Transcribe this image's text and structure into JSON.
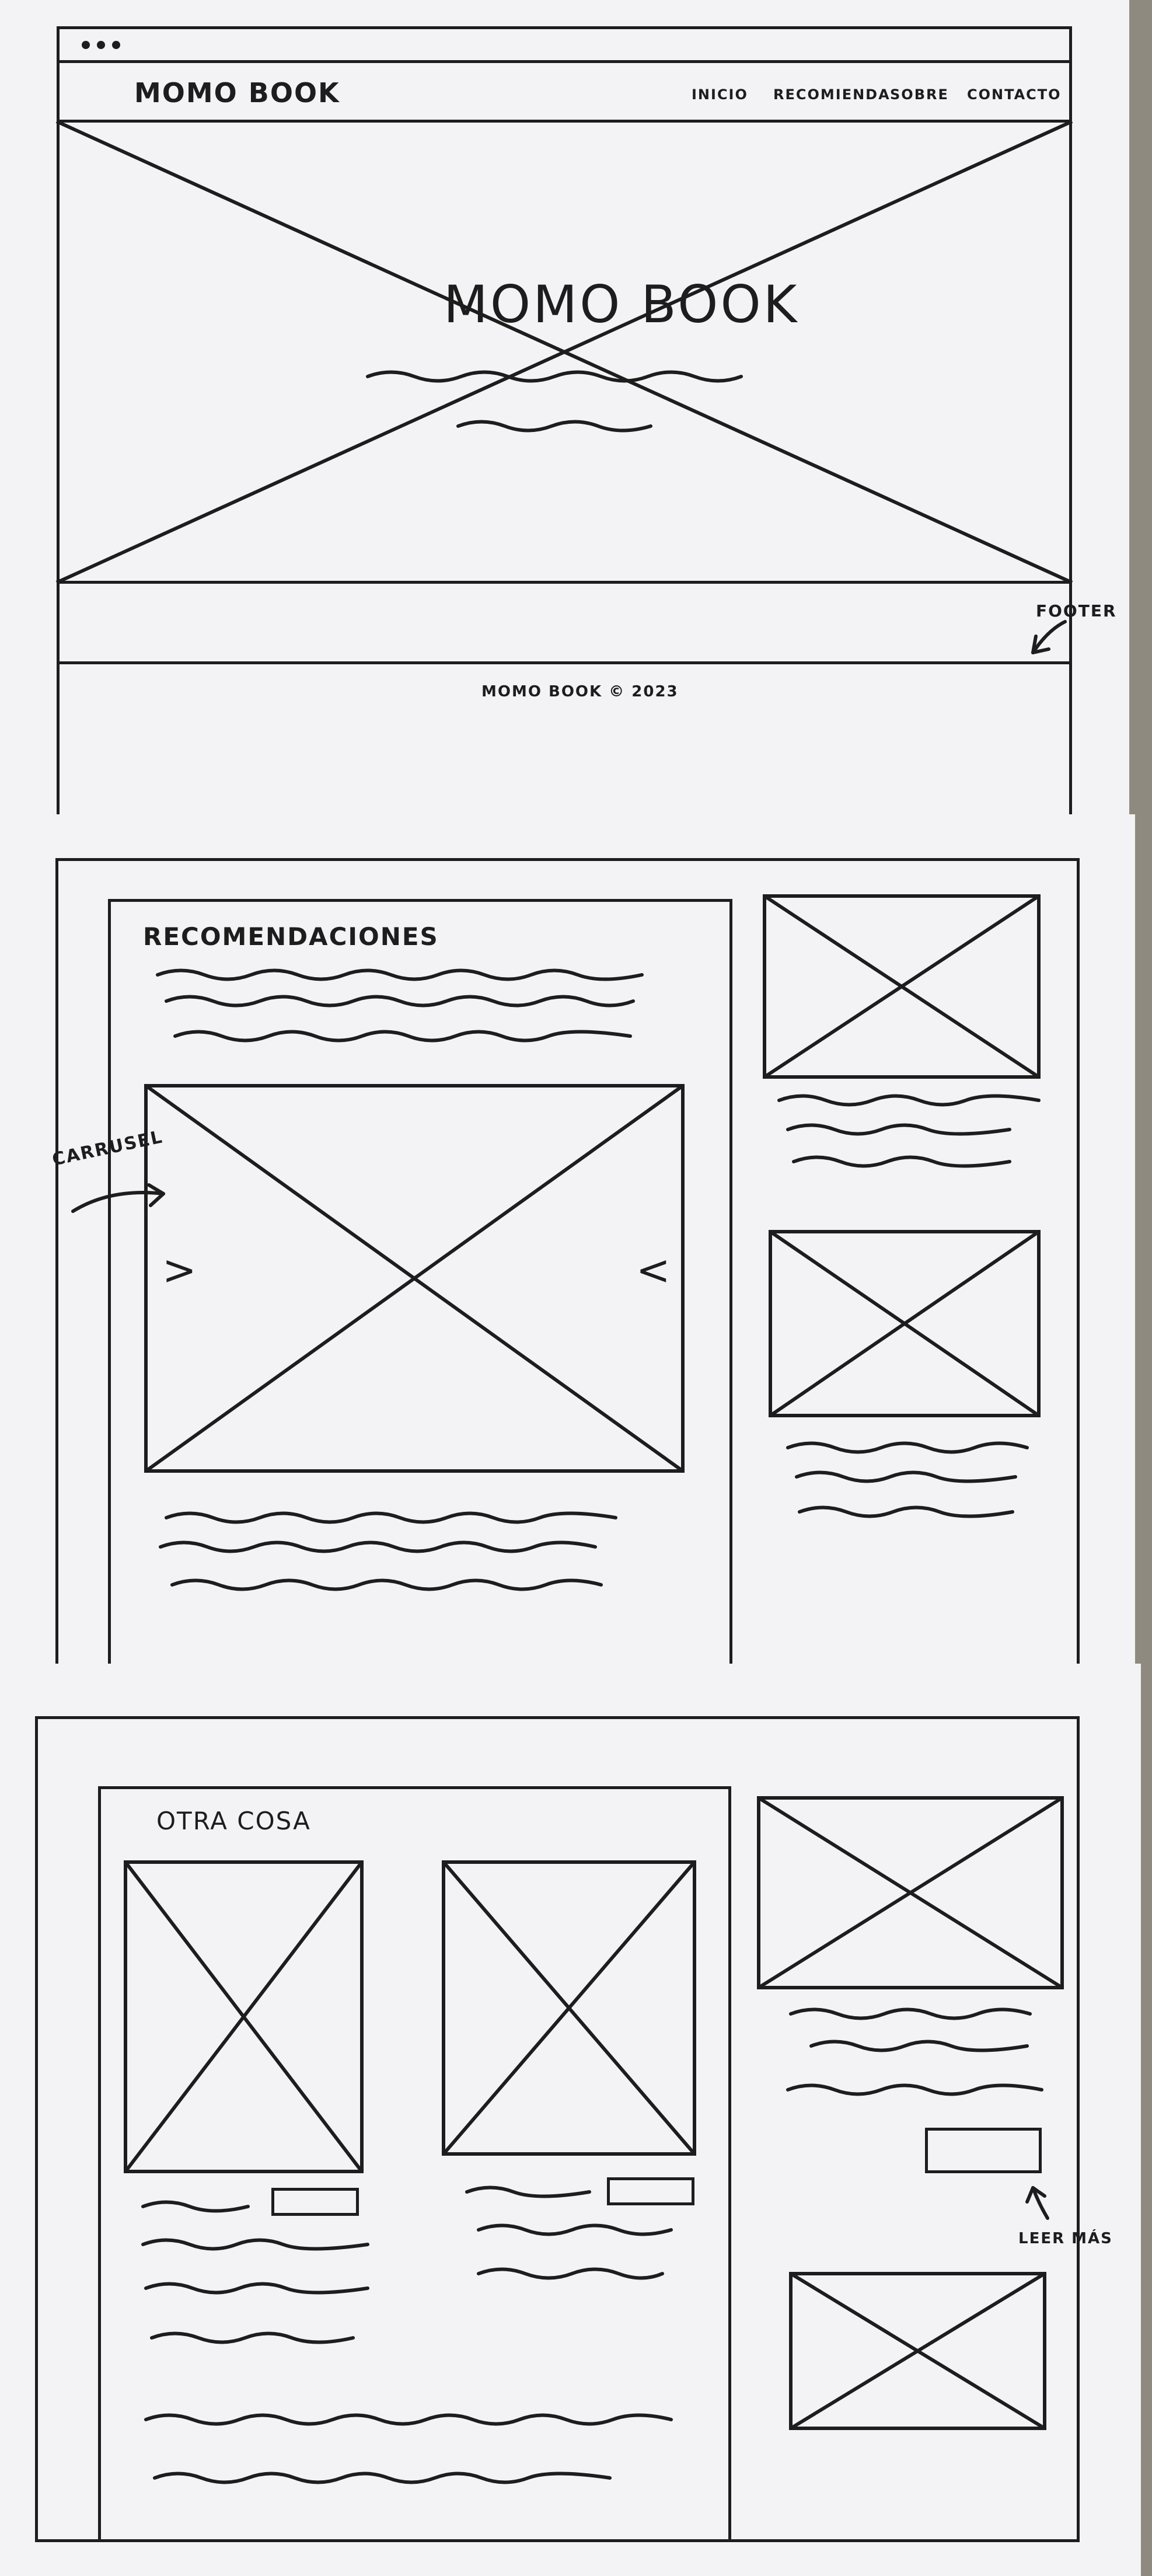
{
  "sketch1": {
    "brand": "MOMO BOOK",
    "nav": [
      "INICIO",
      "RECOMIENDA",
      "SOBRE",
      "CONTACTO"
    ],
    "hero_title": "MOMO BOOK",
    "footer_label": "FOOTER",
    "footer_text": "MOMO BOOK © 2023"
  },
  "sketch2": {
    "section_title": "RECOMENDACIONES",
    "carousel_label": "CARRUSEL",
    "prev_arrow": ">",
    "next_arrow": "<"
  },
  "sketch3": {
    "section_title": "OTRA COSA",
    "leer_mas_label": "LEER MÁS"
  }
}
